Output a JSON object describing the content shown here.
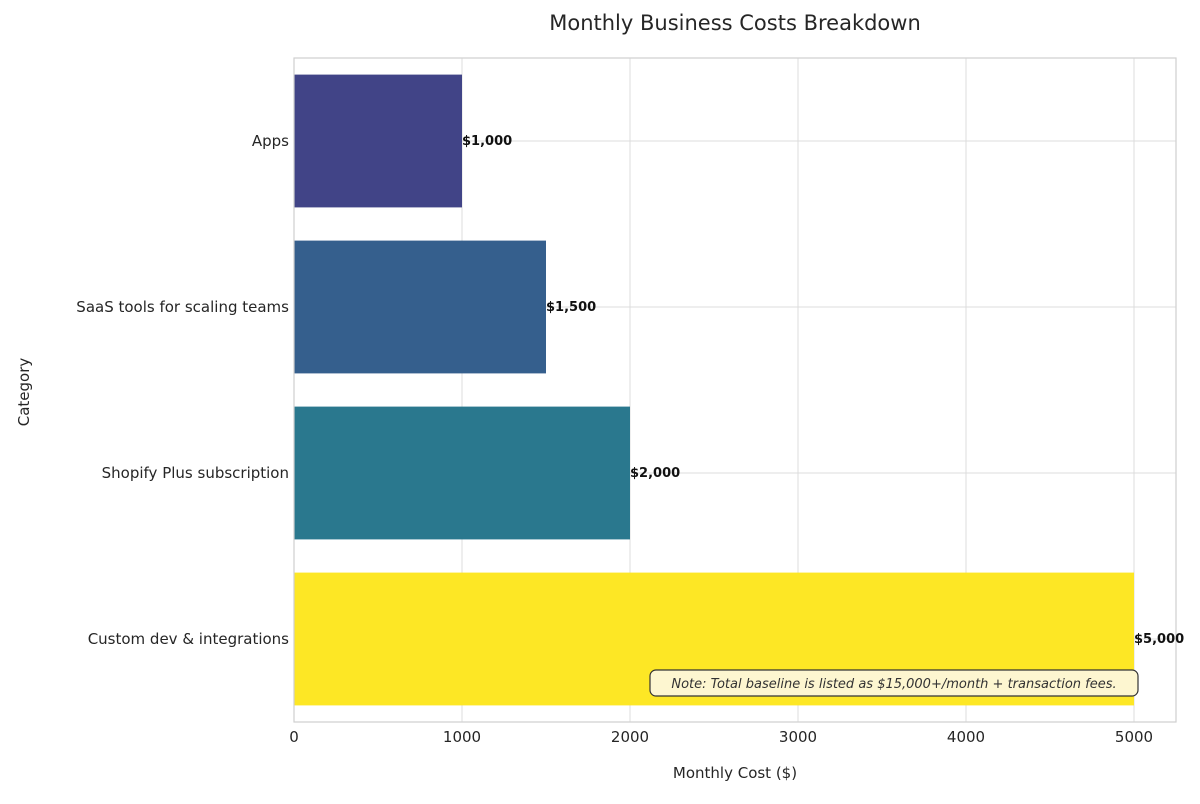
{
  "chart_data": {
    "type": "bar",
    "orientation": "horizontal",
    "title": "Monthly Business Costs Breakdown",
    "xlabel": "Monthly Cost ($)",
    "ylabel": "Category",
    "xlim": [
      0,
      5250
    ],
    "xticks": [
      0,
      1000,
      2000,
      3000,
      4000,
      5000
    ],
    "grid": true,
    "categories": [
      "Apps",
      "SaaS tools for scaling teams",
      "Shopify Plus subscription",
      "Custom dev & integrations"
    ],
    "values": [
      1000,
      1500,
      2000,
      5000
    ],
    "value_labels": [
      "$1,000",
      "$1,500",
      "$2,000",
      "$5,000"
    ],
    "colors": [
      "#414487",
      "#355f8d",
      "#2a788e",
      "#fde725"
    ],
    "annotation": "Note: Total baseline is listed as $15,000+/month + transaction fees."
  }
}
